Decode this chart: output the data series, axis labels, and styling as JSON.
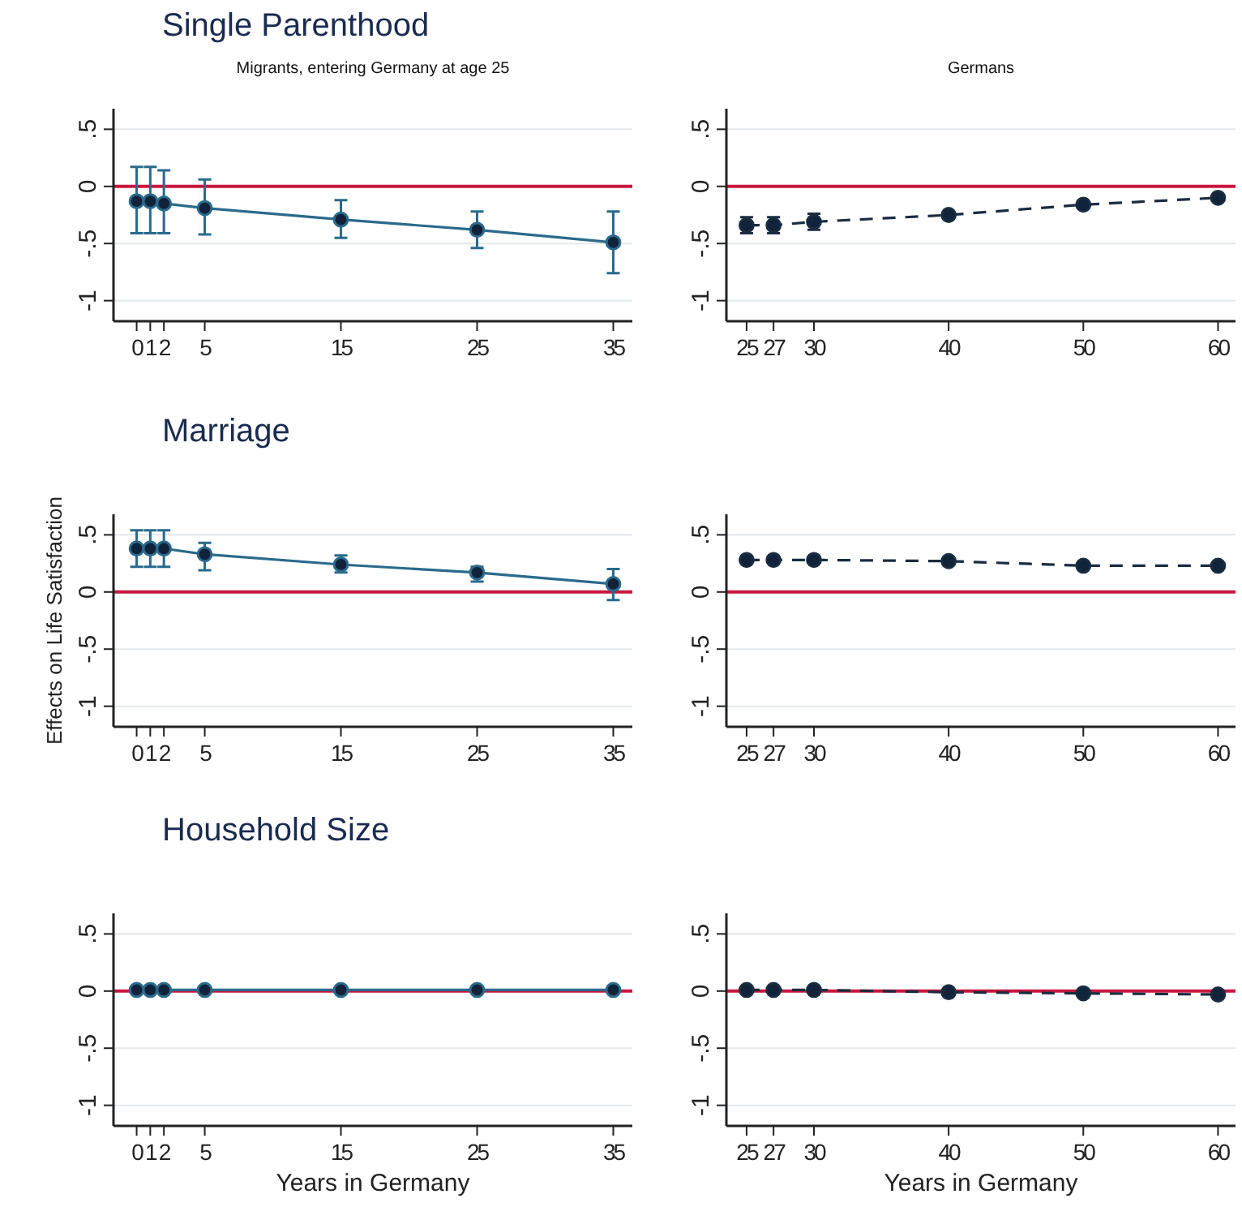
{
  "chart_data": [
    {
      "type": "line",
      "title": "Single Parenthood",
      "subtitle": "Migrants, entering Germany at age 25",
      "x": [
        0,
        1,
        2,
        5,
        15,
        25,
        35
      ],
      "xlim": [
        -1.7,
        36.4
      ],
      "xticks": [
        0,
        1,
        2,
        5,
        15,
        25,
        35
      ],
      "ylim": [
        -1.18,
        0.68
      ],
      "yticks": [
        {
          "value": -1,
          "label": "-1"
        },
        {
          "value": -0.5,
          "label": "-.5"
        },
        {
          "value": 0,
          "label": "0"
        },
        {
          "value": 0.5,
          "label": ".5"
        }
      ],
      "grid": "y",
      "marker": "circle",
      "line_style": "solid",
      "ref_lines": [
        {
          "axis": "y",
          "value": 0,
          "color": "#c8173f"
        }
      ],
      "series": [
        {
          "color": "#2a6a8c",
          "values": [
            -0.13,
            -0.13,
            -0.15,
            -0.19,
            -0.29,
            -0.38,
            -0.49
          ],
          "errors": [
            [
              -0.41,
              0.17
            ],
            [
              -0.41,
              0.17
            ],
            [
              -0.41,
              0.14
            ],
            [
              -0.42,
              0.06
            ],
            [
              -0.45,
              -0.12
            ],
            [
              -0.54,
              -0.22
            ],
            [
              -0.76,
              -0.22
            ]
          ]
        }
      ]
    },
    {
      "type": "line",
      "subtitle": "Germans",
      "x": [
        25,
        27,
        30,
        40,
        50,
        60
      ],
      "xlim": [
        23.5,
        61.3
      ],
      "xticks": [
        25,
        27,
        30,
        40,
        50,
        60
      ],
      "ylim": [
        -1.18,
        0.68
      ],
      "yticks": [
        {
          "value": -1,
          "label": "-1"
        },
        {
          "value": -0.5,
          "label": "-.5"
        },
        {
          "value": 0,
          "label": "0"
        },
        {
          "value": 0.5,
          "label": ".5"
        }
      ],
      "grid": "y",
      "marker": "circle",
      "line_style": "dashed",
      "ref_lines": [
        {
          "axis": "y",
          "value": 0,
          "color": "#c8173f"
        }
      ],
      "series": [
        {
          "color": "#1a2c40",
          "values": [
            -0.34,
            -0.34,
            -0.31,
            -0.25,
            -0.16,
            -0.1
          ],
          "errors": [
            0.07,
            0.07,
            0.07,
            null,
            null,
            null
          ]
        }
      ]
    },
    {
      "type": "line",
      "title": "Marriage",
      "ylabel": "Effects on Life Satisfaction",
      "x": [
        0,
        1,
        2,
        5,
        15,
        25,
        35
      ],
      "xlim": [
        -1.7,
        36.4
      ],
      "xticks": [
        0,
        1,
        2,
        5,
        15,
        25,
        35
      ],
      "ylim": [
        -1.18,
        0.68
      ],
      "yticks": [
        {
          "value": -1,
          "label": "-1"
        },
        {
          "value": -0.5,
          "label": "-.5"
        },
        {
          "value": 0,
          "label": "0"
        },
        {
          "value": 0.5,
          "label": ".5"
        }
      ],
      "grid": "y",
      "marker": "circle",
      "line_style": "solid",
      "ref_lines": [
        {
          "axis": "y",
          "value": 0,
          "color": "#c8173f"
        }
      ],
      "series": [
        {
          "color": "#2a6a8c",
          "values": [
            0.38,
            0.38,
            0.38,
            0.33,
            0.24,
            0.17,
            0.07
          ],
          "errors": [
            [
              0.22,
              0.54
            ],
            [
              0.22,
              0.54
            ],
            [
              0.22,
              0.54
            ],
            [
              0.19,
              0.43
            ],
            [
              0.17,
              0.32
            ],
            [
              0.09,
              0.22
            ],
            [
              -0.07,
              0.2
            ]
          ]
        }
      ]
    },
    {
      "type": "line",
      "x": [
        25,
        27,
        30,
        40,
        50,
        60
      ],
      "xlim": [
        23.5,
        61.3
      ],
      "xticks": [
        25,
        27,
        30,
        40,
        50,
        60
      ],
      "ylim": [
        -1.18,
        0.68
      ],
      "yticks": [
        {
          "value": -1,
          "label": "-1"
        },
        {
          "value": -0.5,
          "label": "-.5"
        },
        {
          "value": 0,
          "label": "0"
        },
        {
          "value": 0.5,
          "label": ".5"
        }
      ],
      "grid": "y",
      "marker": "circle",
      "line_style": "dashed",
      "ref_lines": [
        {
          "axis": "y",
          "value": 0,
          "color": "#c8173f"
        }
      ],
      "series": [
        {
          "color": "#1a2c40",
          "values": [
            0.28,
            0.28,
            0.28,
            0.27,
            0.23,
            0.23
          ]
        }
      ]
    },
    {
      "type": "line",
      "title": "Household Size",
      "xlabel": "Years in Germany",
      "x": [
        0,
        1,
        2,
        5,
        15,
        25,
        35
      ],
      "xlim": [
        -1.7,
        36.4
      ],
      "xticks": [
        0,
        1,
        2,
        5,
        15,
        25,
        35
      ],
      "ylim": [
        -1.18,
        0.68
      ],
      "yticks": [
        {
          "value": -1,
          "label": "-1"
        },
        {
          "value": -0.5,
          "label": "-.5"
        },
        {
          "value": 0,
          "label": "0"
        },
        {
          "value": 0.5,
          "label": ".5"
        }
      ],
      "grid": "y",
      "marker": "circle",
      "line_style": "solid",
      "ref_lines": [
        {
          "axis": "y",
          "value": 0,
          "color": "#c8173f"
        }
      ],
      "series": [
        {
          "color": "#2a6a8c",
          "values": [
            0.01,
            0.01,
            0.01,
            0.01,
            0.01,
            0.01,
            0.01
          ]
        }
      ]
    },
    {
      "type": "line",
      "xlabel": "Years in Germany",
      "x": [
        25,
        27,
        30,
        40,
        50,
        60
      ],
      "xlim": [
        23.5,
        61.3
      ],
      "xticks": [
        25,
        27,
        30,
        40,
        50,
        60
      ],
      "ylim": [
        -1.18,
        0.68
      ],
      "yticks": [
        {
          "value": -1,
          "label": "-1"
        },
        {
          "value": -0.5,
          "label": "-.5"
        },
        {
          "value": 0,
          "label": "0"
        },
        {
          "value": 0.5,
          "label": ".5"
        }
      ],
      "grid": "y",
      "marker": "circle",
      "line_style": "dashed",
      "ref_lines": [
        {
          "axis": "y",
          "value": 0,
          "color": "#c8173f"
        }
      ],
      "series": [
        {
          "color": "#1a2c40",
          "values": [
            0.01,
            0.01,
            0.01,
            -0.01,
            -0.02,
            -0.03
          ]
        }
      ]
    }
  ]
}
